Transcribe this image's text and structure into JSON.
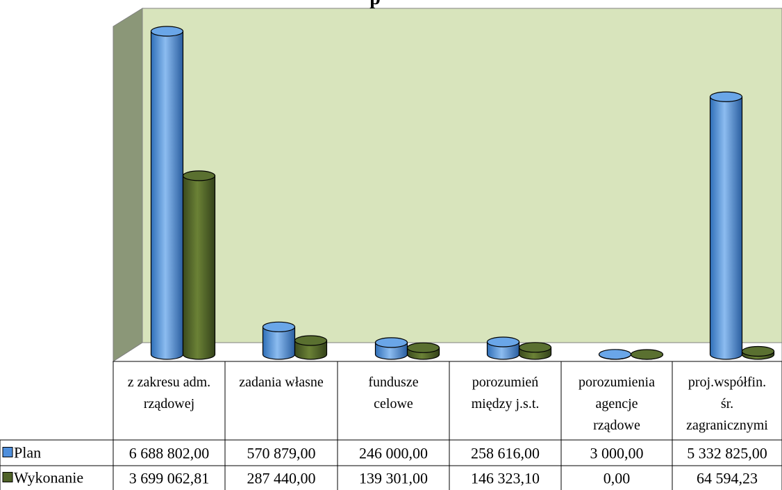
{
  "chart_data": {
    "type": "bar",
    "title": "p",
    "categories": [
      [
        "z zakresu adm.",
        "rządowej"
      ],
      [
        "zadania własne"
      ],
      [
        "fundusze",
        "celowe"
      ],
      [
        "porozumień",
        "między j.s.t."
      ],
      [
        "porozumienia",
        "agencje",
        "rządowe"
      ],
      [
        "proj.współfin.",
        "śr.",
        "zagranicznymi"
      ]
    ],
    "series": [
      {
        "name": "Plan",
        "color": "#4f8fdc",
        "values": [
          6688802.0,
          570879.0,
          246000.0,
          258616.0,
          3000.0,
          5332825.0
        ],
        "labels": [
          "6 688 802,00",
          "570 879,00",
          "246 000,00",
          "258 616,00",
          "3 000,00",
          "5 332 825,00"
        ]
      },
      {
        "name": "Wykonanie",
        "color": "#4f6228",
        "values": [
          3699062.81,
          287440.0,
          139301.0,
          146323.1,
          0.0,
          64594.23
        ],
        "labels": [
          "3 699 062,81",
          "287 440,00",
          "139 301,00",
          "146 323,10",
          "0,00",
          "64 594,23"
        ]
      }
    ],
    "ylim": [
      0,
      7000000
    ],
    "grid": false,
    "legend": "left of data table",
    "wall_color": "#d8e4bc",
    "side_wall_color": "#8b9778"
  }
}
